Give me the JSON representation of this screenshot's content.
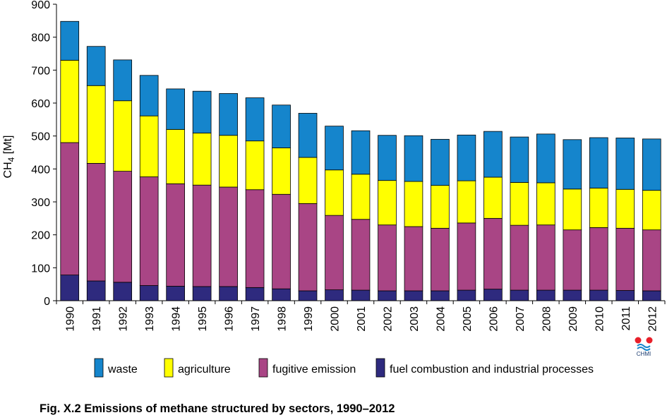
{
  "caption": "Fig. X.2  Emissions of methane structured by sectors, 1990–2012",
  "logo_text": "CHMI",
  "chart_data": {
    "type": "bar",
    "stacked": true,
    "title": "",
    "xlabel": "",
    "ylabel_main": "CH",
    "ylabel_sub": "4",
    "ylabel_unit": " [Mt]",
    "ylim": [
      0,
      900
    ],
    "yticks": [
      0,
      100,
      200,
      300,
      400,
      500,
      600,
      700,
      800,
      900
    ],
    "grid": false,
    "legend_position": "bottom",
    "categories": [
      "1990",
      "1991",
      "1992",
      "1993",
      "1994",
      "1995",
      "1996",
      "1997",
      "1998",
      "1999",
      "2000",
      "2001",
      "2002",
      "2003",
      "2004",
      "2005",
      "2006",
      "2007",
      "2008",
      "2009",
      "2010",
      "2011",
      "2012"
    ],
    "series": [
      {
        "name": "fuel combustion and industrial processes",
        "color": "#2e2a7e",
        "values": [
          78,
          60,
          56,
          46,
          44,
          43,
          43,
          40,
          36,
          30,
          33,
          32,
          30,
          30,
          30,
          32,
          35,
          32,
          32,
          32,
          32,
          31,
          30
        ]
      },
      {
        "name": "fugitive emission",
        "color": "#a94585",
        "values": [
          402,
          357,
          337,
          330,
          311,
          308,
          302,
          297,
          287,
          265,
          226,
          215,
          200,
          195,
          190,
          204,
          215,
          197,
          198,
          183,
          190,
          189,
          185
        ]
      },
      {
        "name": "agriculture",
        "color": "#ffff00",
        "values": [
          250,
          236,
          214,
          185,
          165,
          158,
          157,
          148,
          141,
          140,
          138,
          137,
          135,
          137,
          130,
          128,
          125,
          130,
          128,
          124,
          120,
          118,
          120
        ]
      },
      {
        "name": "waste",
        "color": "#1585cc",
        "values": [
          118,
          119,
          124,
          123,
          123,
          127,
          127,
          131,
          130,
          134,
          133,
          132,
          137,
          139,
          140,
          139,
          139,
          138,
          148,
          150,
          153,
          156,
          156
        ]
      }
    ],
    "legend_order": [
      "waste",
      "agriculture",
      "fugitive emission",
      "fuel combustion and industrial processes"
    ]
  }
}
